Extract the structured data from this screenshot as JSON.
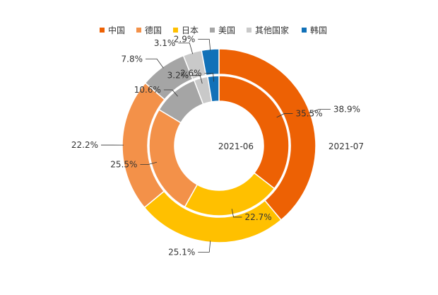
{
  "chart_data": {
    "type": "pie",
    "subtype": "double-donut",
    "categories": [
      "中国",
      "德国",
      "日本",
      "美国",
      "其他国家",
      "韩国"
    ],
    "colors": [
      "#ED6104",
      "#F39149",
      "#FFC000",
      "#A5A5A5",
      "#C9C9C9",
      "#1171B8"
    ],
    "legend_position": "top-center",
    "series": [
      {
        "name": "2021-06",
        "ring": "inner",
        "values": [
          35.5,
          25.5,
          22.7,
          10.6,
          3.2,
          2.6
        ],
        "labels": [
          "35.5%",
          "25.5%",
          "22.7%",
          "10.6%",
          "3.2%",
          "2.6%"
        ]
      },
      {
        "name": "2021-07",
        "ring": "outer",
        "values": [
          38.9,
          22.2,
          25.1,
          7.8,
          3.1,
          2.9
        ],
        "labels": [
          "38.9%",
          "22.2%",
          "25.1%",
          "7.8%",
          "3.1%",
          "2.9%"
        ]
      }
    ],
    "value_order": [
      0,
      2,
      1,
      3,
      4,
      5
    ]
  }
}
